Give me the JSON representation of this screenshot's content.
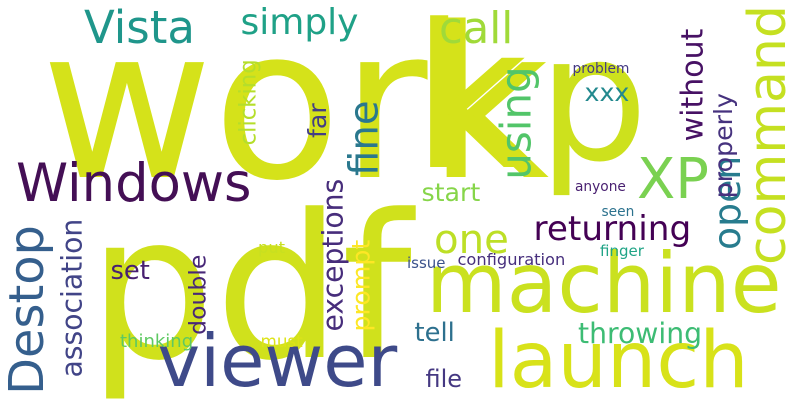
{
  "words": [
    {
      "text": "p",
      "color": "#cde11d",
      "orientation": "horizontal"
    },
    {
      "text": "work",
      "color": "#d5e21a",
      "orientation": "horizontal"
    },
    {
      "text": "pdf",
      "color": "#d0e11c",
      "orientation": "horizontal"
    },
    {
      "text": "machine",
      "color": "#cae11f",
      "orientation": "horizontal"
    },
    {
      "text": "viewer",
      "color": "#3e4a89",
      "orientation": "horizontal"
    },
    {
      "text": "launch",
      "color": "#d8e219",
      "orientation": "horizontal"
    },
    {
      "text": "Windows",
      "color": "#440f55",
      "orientation": "horizontal"
    },
    {
      "text": "k",
      "color": "#d5e21a",
      "orientation": "horizontal"
    },
    {
      "text": "command",
      "color": "#c5e021",
      "orientation": "vertical"
    },
    {
      "text": "XP",
      "color": "#7ad151",
      "orientation": "horizontal"
    },
    {
      "text": "Destop",
      "color": "#355f8d",
      "orientation": "vertical"
    },
    {
      "text": "fine",
      "color": "#2a788e",
      "orientation": "vertical"
    },
    {
      "text": "using",
      "color": "#52c569",
      "orientation": "vertical"
    },
    {
      "text": "Vista",
      "color": "#1f968b",
      "orientation": "horizontal"
    },
    {
      "text": "simply",
      "color": "#1fa187",
      "orientation": "horizontal"
    },
    {
      "text": "call",
      "color": "#a0da39",
      "orientation": "horizontal"
    },
    {
      "text": "one",
      "color": "#bddf26",
      "orientation": "horizontal"
    },
    {
      "text": "returning",
      "color": "#440154",
      "orientation": "horizontal"
    },
    {
      "text": "open",
      "color": "#287c8e",
      "orientation": "vertical"
    },
    {
      "text": "without",
      "color": "#471164",
      "orientation": "vertical"
    },
    {
      "text": "properly",
      "color": "#46327e",
      "orientation": "vertical"
    },
    {
      "text": "xxx",
      "color": "#23898e",
      "orientation": "horizontal"
    },
    {
      "text": "throwing",
      "color": "#3dbc74",
      "orientation": "horizontal"
    },
    {
      "text": "exceptions",
      "color": "#472d7b",
      "orientation": "vertical"
    },
    {
      "text": "start",
      "color": "#86d549",
      "orientation": "horizontal"
    },
    {
      "text": "double",
      "color": "#482878",
      "orientation": "vertical"
    },
    {
      "text": "association",
      "color": "#414487",
      "orientation": "vertical"
    },
    {
      "text": "set",
      "color": "#482071",
      "orientation": "horizontal"
    },
    {
      "text": "far",
      "color": "#433e85",
      "orientation": "vertical"
    },
    {
      "text": "clicking",
      "color": "#b5de2b",
      "orientation": "vertical"
    },
    {
      "text": "prompt",
      "color": "#fde725",
      "orientation": "vertical"
    },
    {
      "text": "tell",
      "color": "#2d708e",
      "orientation": "horizontal"
    },
    {
      "text": "file",
      "color": "#453882",
      "orientation": "horizontal"
    },
    {
      "text": "thinking",
      "color": "#5ec962",
      "orientation": "horizontal"
    },
    {
      "text": "must",
      "color": "#dde318",
      "orientation": "horizontal"
    },
    {
      "text": "put",
      "color": "#c8e020",
      "orientation": "horizontal"
    },
    {
      "text": "issue",
      "color": "#3b528b",
      "orientation": "horizontal"
    },
    {
      "text": "configuration",
      "color": "#472f7d",
      "orientation": "horizontal"
    },
    {
      "text": "finger",
      "color": "#20a486",
      "orientation": "horizontal"
    },
    {
      "text": "seen",
      "color": "#2c728e",
      "orientation": "horizontal"
    },
    {
      "text": "anyone",
      "color": "#481f70",
      "orientation": "horizontal"
    },
    {
      "text": "problem",
      "color": "#443983",
      "orientation": "horizontal"
    }
  ]
}
